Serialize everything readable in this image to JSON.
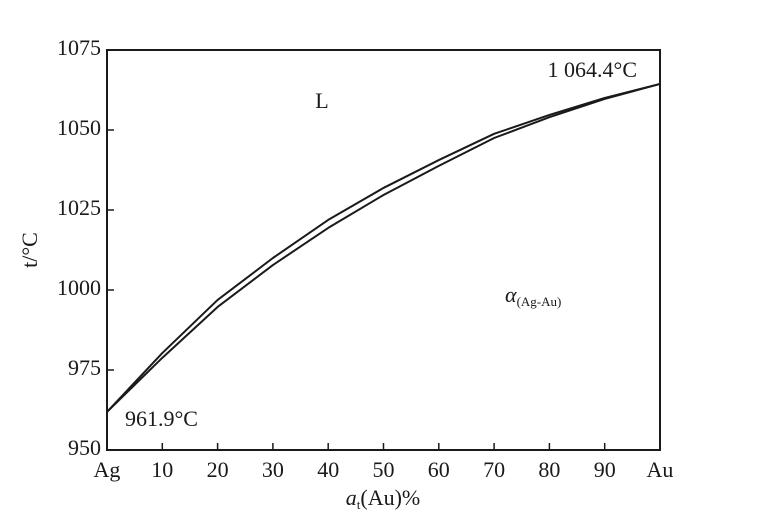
{
  "chart_data": {
    "type": "line",
    "x_label": [
      "a",
      "t",
      "(Au)%"
    ],
    "y_label": "t/°C",
    "x": [
      0,
      10,
      20,
      30,
      40,
      50,
      60,
      70,
      80,
      90,
      100
    ],
    "series": [
      {
        "color": "#1a1a1a",
        "values": [
          961.9,
          980.3,
          996.9,
          1010,
          1021.9,
          1031.9,
          1040.6,
          1048.8,
          1054.7,
          1060,
          1064.4
        ]
      },
      {
        "color": "#1a1a1a",
        "values": [
          961.9,
          978.8,
          994.7,
          1007.8,
          1019.4,
          1029.7,
          1038.8,
          1047.5,
          1054,
          1059.7,
          1064.4
        ]
      }
    ],
    "xlim": [
      0,
      100
    ],
    "xticks": [
      {
        "value": 0,
        "label": "Ag"
      },
      10,
      20,
      30,
      40,
      50,
      60,
      70,
      80,
      90,
      {
        "value": 100,
        "label": "Au"
      }
    ],
    "ylim": [
      950,
      1075
    ],
    "yticks": [
      950,
      975,
      1000,
      1025,
      1050,
      1075
    ],
    "grid": false,
    "annotations": [
      "L",
      [
        "α",
        "(Ag-Au)"
      ],
      "961.9°C",
      "1 064.4°C"
    ]
  }
}
